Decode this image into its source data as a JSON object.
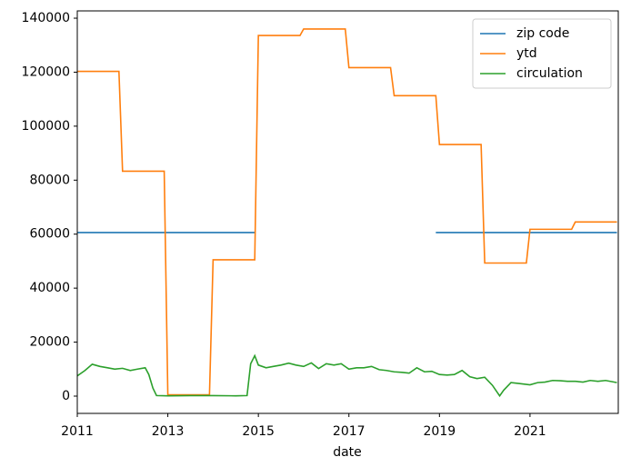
{
  "chart_data": {
    "type": "line",
    "x_label": "date",
    "xlim": [
      2011,
      2022.95
    ],
    "xticks": [
      2011,
      2013,
      2015,
      2017,
      2019,
      2021
    ],
    "ylim": [
      -6400,
      142700
    ],
    "yticks": [
      0,
      20000,
      40000,
      60000,
      80000,
      100000,
      120000,
      140000
    ],
    "legend": "upper right",
    "series": [
      {
        "name": "zip code",
        "color": "#1f77b4",
        "x": [
          2011,
          2014.92,
          2016.92,
          2018.92,
          2022.92
        ],
        "values": [
          60600,
          60600,
          null,
          60600,
          60600
        ]
      },
      {
        "name": "ytd",
        "color": "#ff7f0e",
        "x": [
          2011,
          2011.92,
          2012,
          2012.92,
          2013,
          2013.92,
          2014,
          2014.92,
          2015,
          2015.92,
          2016,
          2016.92,
          2017,
          2017.92,
          2018,
          2018.92,
          2019,
          2019.92,
          2020,
          2020.92,
          2021,
          2021.92,
          2022,
          2022.92
        ],
        "values": [
          120300,
          120300,
          83300,
          83300,
          500,
          500,
          50500,
          50500,
          133600,
          133600,
          136000,
          136000,
          121700,
          121700,
          111300,
          111300,
          93200,
          93200,
          49300,
          49300,
          61800,
          61800,
          64500,
          64500
        ]
      },
      {
        "name": "circulation",
        "color": "#2ca02c",
        "x": [
          2011,
          2011.17,
          2011.33,
          2011.5,
          2011.67,
          2011.83,
          2012,
          2012.17,
          2012.33,
          2012.5,
          2012.58,
          2012.67,
          2012.75,
          2013,
          2013.5,
          2014,
          2014.5,
          2014.75,
          2014.83,
          2014.92,
          2015,
          2015.17,
          2015.33,
          2015.5,
          2015.67,
          2015.83,
          2016,
          2016.17,
          2016.33,
          2016.5,
          2016.67,
          2016.83,
          2017,
          2017.17,
          2017.33,
          2017.5,
          2017.67,
          2017.83,
          2018,
          2018.17,
          2018.33,
          2018.5,
          2018.67,
          2018.83,
          2019,
          2019.17,
          2019.33,
          2019.5,
          2019.67,
          2019.83,
          2020,
          2020.17,
          2020.33,
          2020.42,
          2020.58,
          2020.75,
          2021,
          2021.17,
          2021.33,
          2021.5,
          2021.67,
          2021.83,
          2022,
          2022.17,
          2022.33,
          2022.5,
          2022.67,
          2022.83,
          2022.92
        ],
        "values": [
          7500,
          9500,
          11800,
          11000,
          10500,
          10000,
          10300,
          9500,
          10000,
          10500,
          8000,
          3000,
          200,
          100,
          200,
          200,
          100,
          200,
          12000,
          15000,
          11500,
          10500,
          11000,
          11500,
          12200,
          11500,
          11000,
          12300,
          10200,
          12000,
          11500,
          12000,
          10000,
          10500,
          10500,
          11000,
          9800,
          9500,
          9000,
          8800,
          8500,
          10500,
          9000,
          9200,
          8000,
          7800,
          8000,
          9500,
          7200,
          6500,
          7000,
          4000,
          100,
          2200,
          5000,
          4700,
          4200,
          5000,
          5200,
          5800,
          5700,
          5500,
          5500,
          5200,
          5800,
          5500,
          5800,
          5300,
          5000
        ]
      }
    ]
  }
}
